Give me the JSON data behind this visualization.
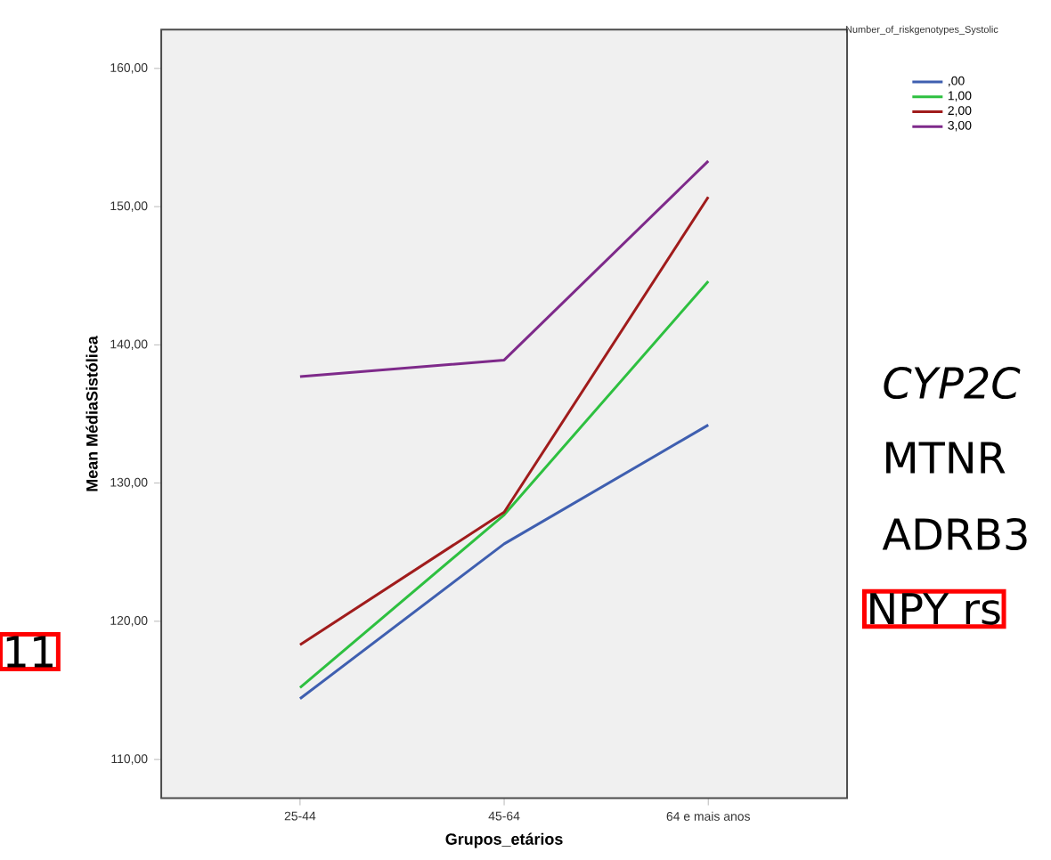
{
  "chart_data": {
    "type": "line",
    "xlabel": "Grupos_etários",
    "ylabel": "Mean MédiaSistólica",
    "legend_title": "Number_of_riskgenotypes_Systolic",
    "categories": [
      "25-44",
      "45-64",
      "64 e mais anos"
    ],
    "series": [
      {
        "name": ",00",
        "color": "#3f5fb0",
        "values": [
          114.4,
          125.6,
          134.2
        ]
      },
      {
        "name": "1,00",
        "color": "#2ec040",
        "values": [
          115.2,
          127.7,
          144.6
        ]
      },
      {
        "name": "2,00",
        "color": "#a01c1c",
        "values": [
          118.3,
          127.9,
          150.7
        ]
      },
      {
        "name": "3,00",
        "color": "#7e2a8a",
        "values": [
          137.7,
          138.9,
          153.3
        ]
      }
    ],
    "ylim": [
      107.2,
      162.8
    ],
    "yticks": [
      {
        "value": 110,
        "label": "110,00"
      },
      {
        "value": 120,
        "label": "120,00"
      },
      {
        "value": 130,
        "label": "130,00"
      },
      {
        "value": 140,
        "label": "140,00"
      },
      {
        "value": 150,
        "label": "150,00"
      },
      {
        "value": 160,
        "label": "160,00"
      }
    ],
    "legend": "top right",
    "grid": false,
    "marker": "none",
    "line_style": "solid",
    "annotations": [
      "CYP2C",
      "MTNR",
      "ADRB3",
      "NPY rs",
      "11"
    ]
  }
}
